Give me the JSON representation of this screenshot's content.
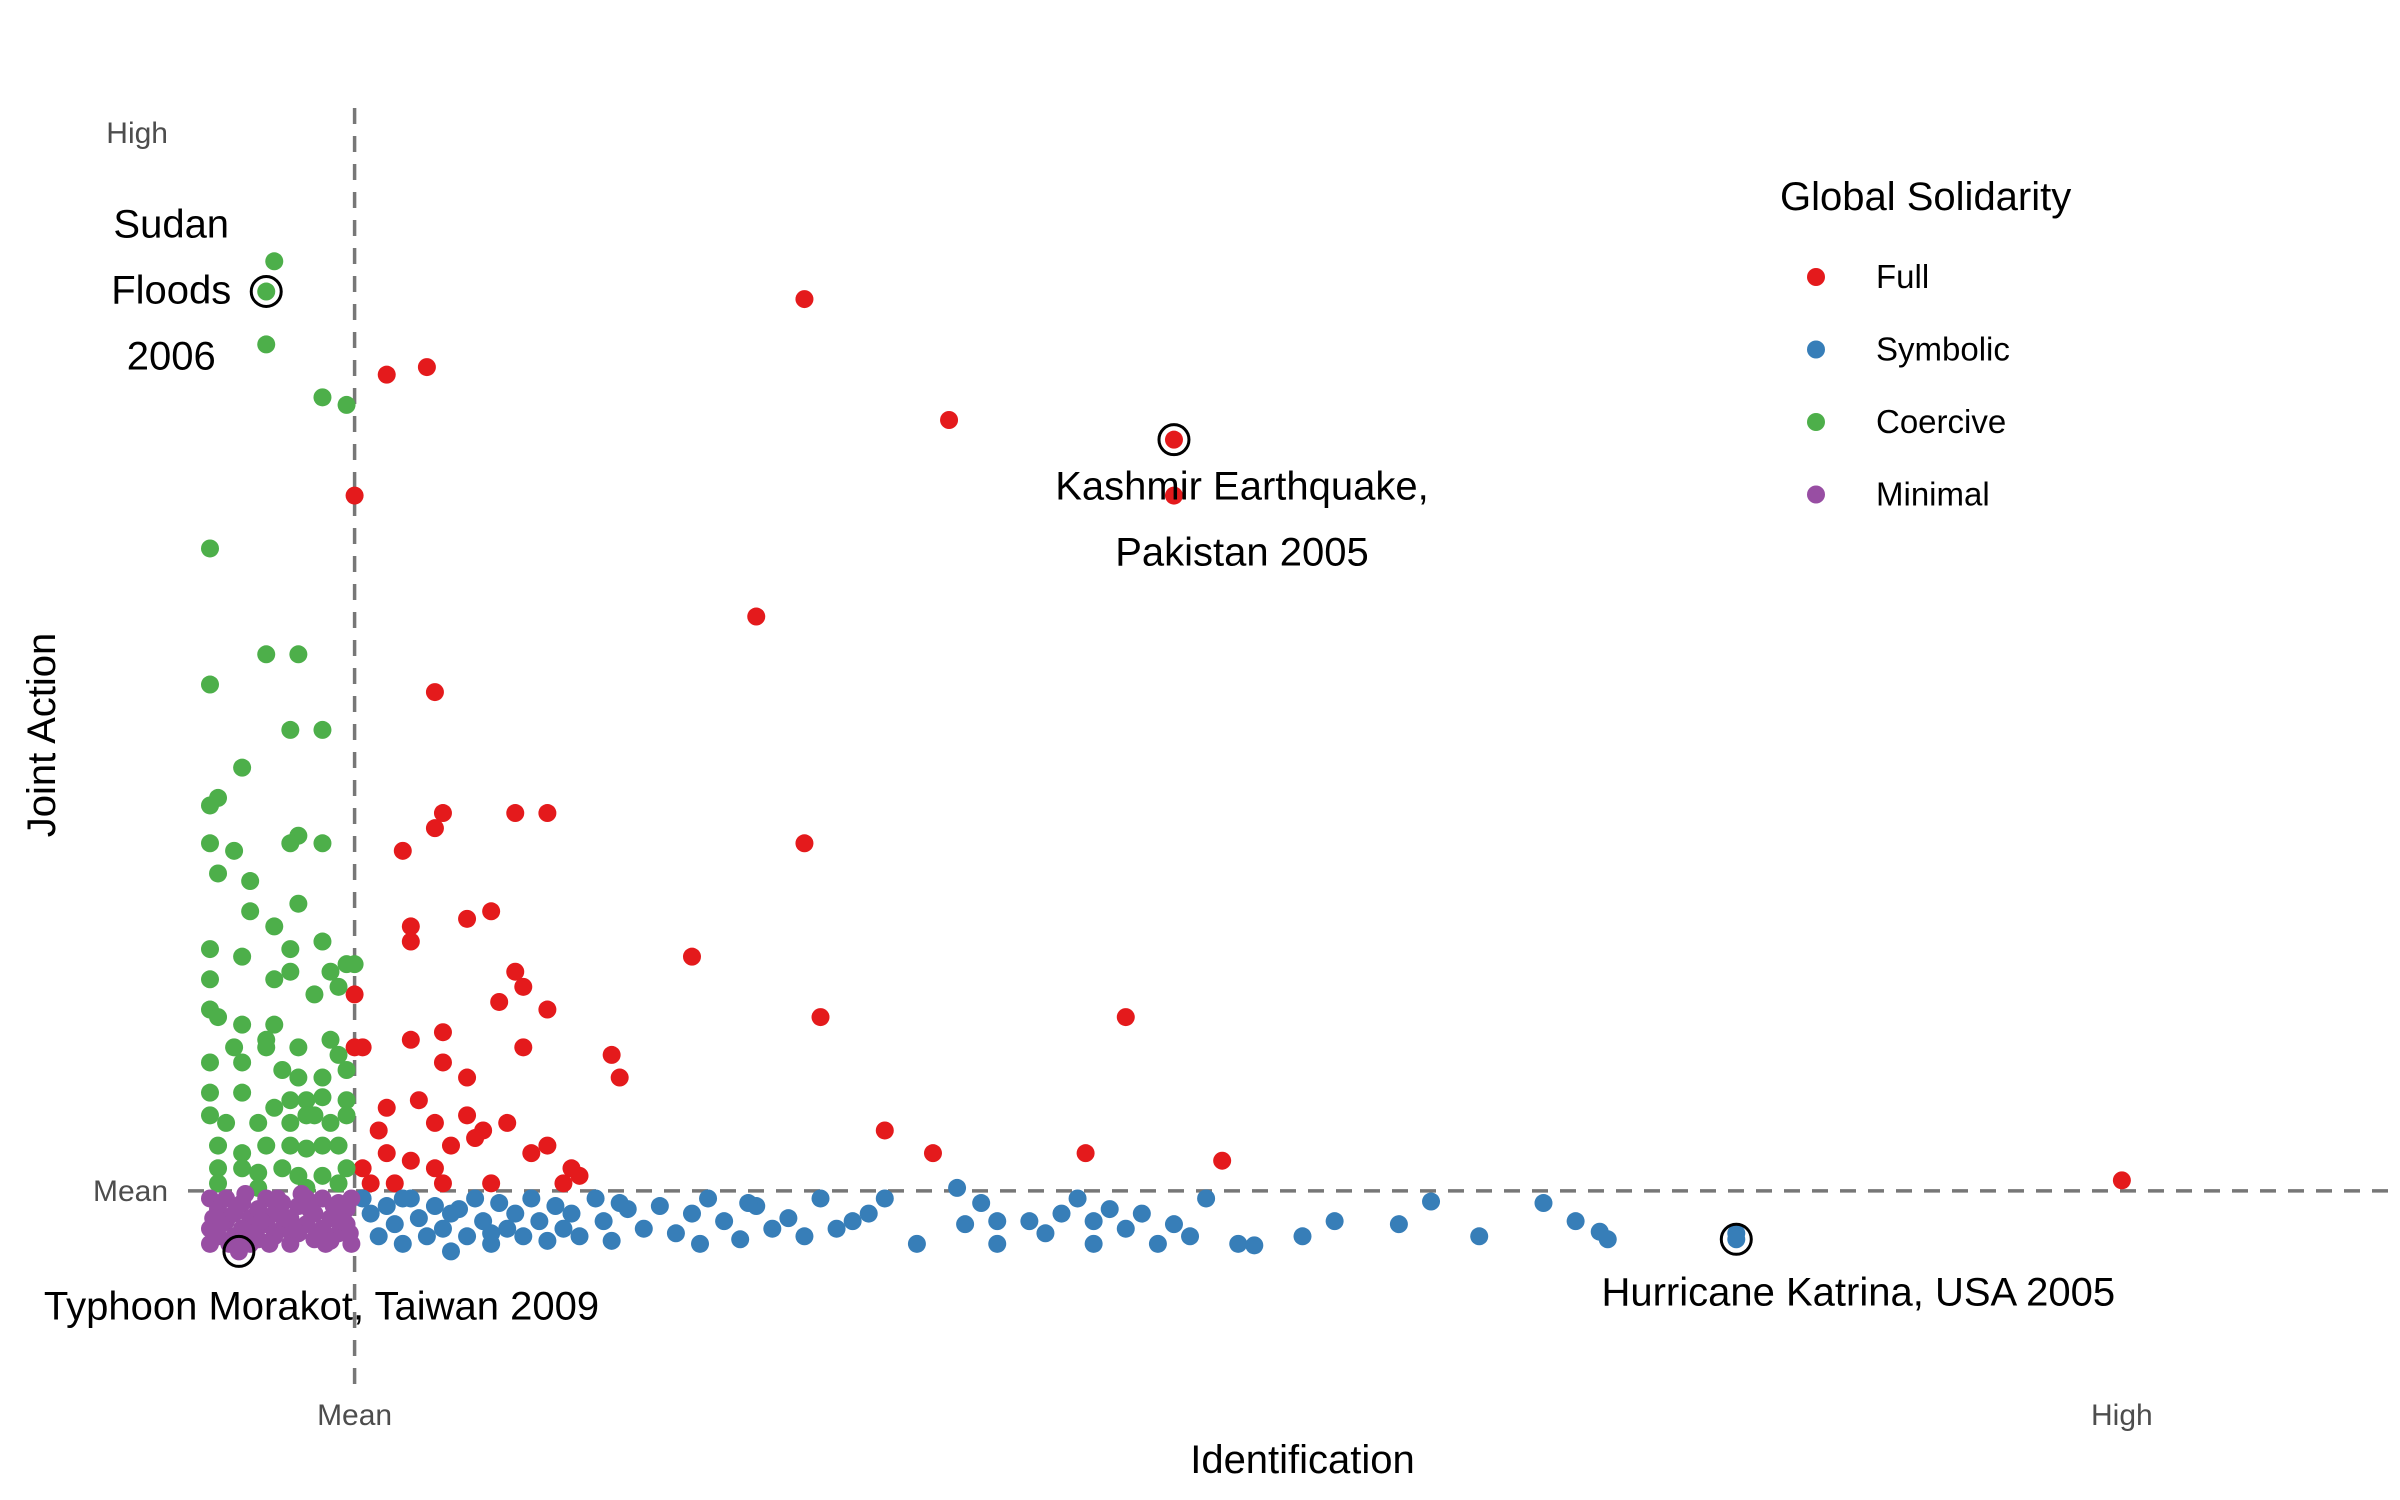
{
  "chart_data": {
    "type": "scatter",
    "xlabel": "Identification",
    "ylabel": "Joint Action",
    "xlim": [
      -0.9,
      12.7
    ],
    "ylim": [
      -1.35,
      7.25
    ],
    "x_ticks": [
      {
        "value": 0,
        "label": "Mean"
      },
      {
        "value": 11,
        "label": "High"
      }
    ],
    "y_ticks": [
      {
        "value": 0,
        "label": "Mean"
      },
      {
        "value": 7,
        "label": "High"
      }
    ],
    "reference_lines": {
      "vertical_at": 0,
      "horizontal_at": 0,
      "style": "dashed",
      "color": "#777777"
    },
    "grid": false,
    "legend": {
      "title": "Global Solidarity",
      "placement": "top-right",
      "entries": [
        {
          "name": "Full",
          "color": "#e41a1c"
        },
        {
          "name": "Symbolic",
          "color": "#377eb8"
        },
        {
          "name": "Coercive",
          "color": "#4daf4a"
        },
        {
          "name": "Minimal",
          "color": "#984ea3"
        }
      ]
    },
    "series": [
      {
        "name": "Full",
        "color": "#e41a1c",
        "points": [
          [
            2.8,
            5.9
          ],
          [
            0.2,
            5.4
          ],
          [
            0.45,
            5.45
          ],
          [
            0,
            4.6
          ],
          [
            3.7,
            5.1
          ],
          [
            2.5,
            3.8
          ],
          [
            0.5,
            3.3
          ],
          [
            0.55,
            2.5
          ],
          [
            0.3,
            2.25
          ],
          [
            1.2,
            2.5
          ],
          [
            2.8,
            2.3
          ],
          [
            0.35,
            1.65
          ],
          [
            0.35,
            1.75
          ],
          [
            0.7,
            1.8
          ],
          [
            0.85,
            1.85
          ],
          [
            1.0,
            1.45
          ],
          [
            1.05,
            1.35
          ],
          [
            1.2,
            1.2
          ],
          [
            2.1,
            1.55
          ],
          [
            0.9,
            1.25
          ],
          [
            0.55,
            1.05
          ],
          [
            1.05,
            0.95
          ],
          [
            2.9,
            1.15
          ],
          [
            4.8,
            1.15
          ],
          [
            0,
            1.3
          ],
          [
            0.35,
            1.0
          ],
          [
            0.55,
            0.85
          ],
          [
            0.7,
            0.75
          ],
          [
            0,
            0.95
          ],
          [
            0.05,
            0.95
          ],
          [
            1.6,
            0.9
          ],
          [
            1.65,
            0.75
          ],
          [
            0.2,
            0.55
          ],
          [
            0.4,
            0.6
          ],
          [
            0.5,
            0.45
          ],
          [
            0.7,
            0.5
          ],
          [
            0.8,
            0.4
          ],
          [
            0.95,
            0.45
          ],
          [
            0.15,
            0.4
          ],
          [
            0.6,
            0.3
          ],
          [
            0.75,
            0.35
          ],
          [
            0.2,
            0.25
          ],
          [
            0.35,
            0.2
          ],
          [
            0.5,
            0.15
          ],
          [
            1.2,
            0.3
          ],
          [
            1.1,
            0.25
          ],
          [
            1.35,
            0.15
          ],
          [
            1.4,
            0.1
          ],
          [
            3.3,
            0.4
          ],
          [
            3.6,
            0.25
          ],
          [
            4.55,
            0.25
          ],
          [
            5.4,
            0.2
          ],
          [
            0.05,
            0.15
          ],
          [
            0.25,
            0.05
          ],
          [
            0.55,
            0.05
          ],
          [
            0.85,
            0.05
          ],
          [
            1.3,
            0.05
          ],
          [
            0.1,
            0.05
          ],
          [
            11,
            0.07
          ],
          [
            5.1,
            4.6
          ],
          [
            0.5,
            2.4
          ],
          [
            1.0,
            2.5
          ]
        ]
      },
      {
        "name": "Symbolic",
        "color": "#377eb8",
        "points": [
          [
            8.6,
            -0.28
          ],
          [
            0.05,
            -0.05
          ],
          [
            0.1,
            -0.15
          ],
          [
            0.15,
            -0.3
          ],
          [
            0.2,
            -0.1
          ],
          [
            0.25,
            -0.22
          ],
          [
            0.3,
            -0.35
          ],
          [
            0.35,
            -0.05
          ],
          [
            0.4,
            -0.18
          ],
          [
            0.45,
            -0.3
          ],
          [
            0.5,
            -0.1
          ],
          [
            0.55,
            -0.25
          ],
          [
            0.6,
            -0.4
          ],
          [
            0.65,
            -0.12
          ],
          [
            0.7,
            -0.3
          ],
          [
            0.75,
            -0.05
          ],
          [
            0.8,
            -0.2
          ],
          [
            0.85,
            -0.35
          ],
          [
            0.9,
            -0.08
          ],
          [
            0.95,
            -0.25
          ],
          [
            1.0,
            -0.15
          ],
          [
            1.05,
            -0.3
          ],
          [
            1.1,
            -0.05
          ],
          [
            1.15,
            -0.2
          ],
          [
            1.2,
            -0.33
          ],
          [
            1.25,
            -0.1
          ],
          [
            1.3,
            -0.25
          ],
          [
            1.35,
            -0.15
          ],
          [
            1.4,
            -0.3
          ],
          [
            1.5,
            -0.05
          ],
          [
            1.55,
            -0.2
          ],
          [
            1.6,
            -0.33
          ],
          [
            1.7,
            -0.12
          ],
          [
            1.8,
            -0.25
          ],
          [
            1.9,
            -0.1
          ],
          [
            2.0,
            -0.28
          ],
          [
            2.1,
            -0.15
          ],
          [
            2.2,
            -0.05
          ],
          [
            2.3,
            -0.2
          ],
          [
            2.4,
            -0.32
          ],
          [
            2.5,
            -0.1
          ],
          [
            2.6,
            -0.25
          ],
          [
            2.7,
            -0.18
          ],
          [
            2.8,
            -0.3
          ],
          [
            2.9,
            -0.05
          ],
          [
            3.0,
            -0.25
          ],
          [
            3.1,
            -0.2
          ],
          [
            3.3,
            -0.05
          ],
          [
            3.5,
            -0.35
          ],
          [
            3.75,
            0.02
          ],
          [
            3.8,
            -0.22
          ],
          [
            4.0,
            -0.2
          ],
          [
            4.0,
            -0.35
          ],
          [
            4.2,
            -0.2
          ],
          [
            4.4,
            -0.15
          ],
          [
            4.5,
            -0.05
          ],
          [
            4.6,
            -0.2
          ],
          [
            4.7,
            -0.12
          ],
          [
            4.6,
            -0.35
          ],
          [
            4.8,
            -0.25
          ],
          [
            4.9,
            -0.15
          ],
          [
            5.0,
            -0.35
          ],
          [
            5.1,
            -0.22
          ],
          [
            5.2,
            -0.3
          ],
          [
            5.5,
            -0.35
          ],
          [
            5.9,
            -0.3
          ],
          [
            6.5,
            -0.22
          ],
          [
            6.7,
            -0.07
          ],
          [
            7.0,
            -0.3
          ],
          [
            7.4,
            -0.08
          ],
          [
            7.6,
            -0.2
          ],
          [
            7.75,
            -0.27
          ],
          [
            7.8,
            -0.32
          ],
          [
            6.1,
            -0.2
          ],
          [
            5.3,
            -0.05
          ],
          [
            5.6,
            -0.36
          ],
          [
            3.2,
            -0.15
          ],
          [
            2.45,
            -0.08
          ],
          [
            0.3,
            -0.05
          ],
          [
            0.6,
            -0.15
          ],
          [
            0.85,
            -0.28
          ],
          [
            1.65,
            -0.08
          ],
          [
            2.15,
            -0.35
          ],
          [
            3.9,
            -0.08
          ],
          [
            4.3,
            -0.28
          ]
        ]
      },
      {
        "name": "Coercive",
        "color": "#4daf4a",
        "points": [
          [
            -0.5,
            6.15
          ],
          [
            -0.55,
            5.6
          ],
          [
            -0.2,
            5.25
          ],
          [
            -0.05,
            5.2
          ],
          [
            -0.9,
            4.25
          ],
          [
            -0.55,
            3.55
          ],
          [
            -0.35,
            3.55
          ],
          [
            -0.9,
            3.35
          ],
          [
            -0.4,
            3.05
          ],
          [
            -0.2,
            3.05
          ],
          [
            -0.7,
            2.8
          ],
          [
            -0.85,
            2.6
          ],
          [
            -0.9,
            2.55
          ],
          [
            -0.9,
            2.3
          ],
          [
            -0.75,
            2.25
          ],
          [
            -0.35,
            2.35
          ],
          [
            -0.4,
            2.3
          ],
          [
            -0.2,
            2.3
          ],
          [
            -0.35,
            1.9
          ],
          [
            -0.65,
            1.85
          ],
          [
            -0.5,
            1.75
          ],
          [
            -0.9,
            1.6
          ],
          [
            -0.4,
            1.6
          ],
          [
            -0.7,
            1.55
          ],
          [
            -0.9,
            1.4
          ],
          [
            -0.5,
            1.4
          ],
          [
            -0.4,
            1.45
          ],
          [
            -0.25,
            1.3
          ],
          [
            -0.15,
            1.45
          ],
          [
            -0.1,
            1.35
          ],
          [
            -0.05,
            1.5
          ],
          [
            0,
            1.5
          ],
          [
            -0.9,
            1.2
          ],
          [
            -0.85,
            1.15
          ],
          [
            -0.7,
            1.1
          ],
          [
            -0.5,
            1.1
          ],
          [
            -0.55,
            1.0
          ],
          [
            -0.35,
            0.95
          ],
          [
            -0.75,
            0.95
          ],
          [
            -0.15,
            1.0
          ],
          [
            -0.1,
            0.9
          ],
          [
            -0.9,
            0.85
          ],
          [
            -0.7,
            0.85
          ],
          [
            -0.45,
            0.8
          ],
          [
            -0.35,
            0.75
          ],
          [
            -0.2,
            0.75
          ],
          [
            -0.05,
            0.8
          ],
          [
            -0.9,
            0.65
          ],
          [
            -0.7,
            0.65
          ],
          [
            -0.4,
            0.6
          ],
          [
            -0.3,
            0.6
          ],
          [
            -0.2,
            0.62
          ],
          [
            -0.05,
            0.6
          ],
          [
            -0.9,
            0.5
          ],
          [
            -0.8,
            0.45
          ],
          [
            -0.6,
            0.45
          ],
          [
            -0.5,
            0.55
          ],
          [
            -0.4,
            0.45
          ],
          [
            -0.3,
            0.5
          ],
          [
            -0.15,
            0.45
          ],
          [
            -0.05,
            0.5
          ],
          [
            -0.85,
            0.3
          ],
          [
            -0.7,
            0.25
          ],
          [
            -0.55,
            0.3
          ],
          [
            -0.4,
            0.3
          ],
          [
            -0.3,
            0.28
          ],
          [
            -0.2,
            0.3
          ],
          [
            -0.1,
            0.3
          ],
          [
            -0.85,
            0.15
          ],
          [
            -0.7,
            0.15
          ],
          [
            -0.6,
            0.12
          ],
          [
            -0.45,
            0.15
          ],
          [
            -0.35,
            0.1
          ],
          [
            -0.2,
            0.1
          ],
          [
            -0.05,
            0.15
          ],
          [
            -0.85,
            0.05
          ],
          [
            -0.6,
            0.02
          ],
          [
            -0.3,
            0.02
          ],
          [
            -0.1,
            0.05
          ],
          [
            -0.65,
            2.05
          ],
          [
            -0.85,
            2.1
          ],
          [
            -0.2,
            1.65
          ],
          [
            -0.55,
            0.95
          ],
          [
            -0.25,
            0.5
          ]
        ]
      },
      {
        "name": "Minimal",
        "color": "#984ea3",
        "points": [
          [
            -0.9,
            -0.05
          ],
          [
            -0.85,
            -0.12
          ],
          [
            -0.8,
            -0.2
          ],
          [
            -0.75,
            -0.3
          ],
          [
            -0.7,
            -0.08
          ],
          [
            -0.65,
            -0.18
          ],
          [
            -0.6,
            -0.32
          ],
          [
            -0.55,
            -0.05
          ],
          [
            -0.5,
            -0.15
          ],
          [
            -0.45,
            -0.25
          ],
          [
            -0.4,
            -0.35
          ],
          [
            -0.35,
            -0.1
          ],
          [
            -0.3,
            -0.22
          ],
          [
            -0.25,
            -0.32
          ],
          [
            -0.2,
            -0.05
          ],
          [
            -0.15,
            -0.18
          ],
          [
            -0.1,
            -0.28
          ],
          [
            -0.05,
            -0.12
          ],
          [
            -0.02,
            -0.35
          ],
          [
            -0.9,
            -0.25
          ],
          [
            -0.9,
            -0.35
          ],
          [
            -0.85,
            -0.3
          ],
          [
            -0.8,
            -0.05
          ],
          [
            -0.75,
            -0.15
          ],
          [
            -0.7,
            -0.25
          ],
          [
            -0.65,
            -0.35
          ],
          [
            -0.6,
            -0.12
          ],
          [
            -0.55,
            -0.22
          ],
          [
            -0.5,
            -0.3
          ],
          [
            -0.45,
            -0.08
          ],
          [
            -0.4,
            -0.18
          ],
          [
            -0.35,
            -0.28
          ],
          [
            -0.3,
            -0.05
          ],
          [
            -0.25,
            -0.15
          ],
          [
            -0.2,
            -0.25
          ],
          [
            -0.15,
            -0.33
          ],
          [
            -0.1,
            -0.08
          ],
          [
            -0.05,
            -0.22
          ],
          [
            -0.02,
            -0.05
          ],
          [
            -0.88,
            -0.18
          ],
          [
            -0.78,
            -0.35
          ],
          [
            -0.68,
            -0.02
          ],
          [
            -0.58,
            -0.2
          ],
          [
            -0.48,
            -0.05
          ],
          [
            -0.38,
            -0.25
          ],
          [
            -0.28,
            -0.12
          ],
          [
            -0.18,
            -0.35
          ],
          [
            -0.08,
            -0.2
          ],
          [
            -0.83,
            -0.22
          ],
          [
            -0.73,
            -0.1
          ],
          [
            -0.63,
            -0.28
          ],
          [
            -0.53,
            -0.35
          ],
          [
            -0.43,
            -0.18
          ],
          [
            -0.33,
            -0.02
          ],
          [
            -0.23,
            -0.3
          ],
          [
            -0.13,
            -0.1
          ],
          [
            -0.03,
            -0.28
          ],
          [
            -0.72,
            -0.33
          ]
        ]
      }
    ],
    "annotations": [
      {
        "text_lines": [
          "Sudan",
          "Floods",
          "2006"
        ],
        "x": -0.55,
        "y": 5.95,
        "series": "Coercive"
      },
      {
        "text_lines": [
          "Kashmir Earthquake,",
          "Pakistan 2005"
        ],
        "x": 5.1,
        "y": 4.97,
        "series": "Full"
      },
      {
        "text_lines": [
          "Typhoon Morakot, Taiwan 2009"
        ],
        "x": -0.72,
        "y": -0.4,
        "series": "Minimal"
      },
      {
        "text_lines": [
          "Hurricane Katrina,  USA 2005"
        ],
        "x": 8.6,
        "y": -0.32,
        "series": "Symbolic"
      }
    ]
  }
}
